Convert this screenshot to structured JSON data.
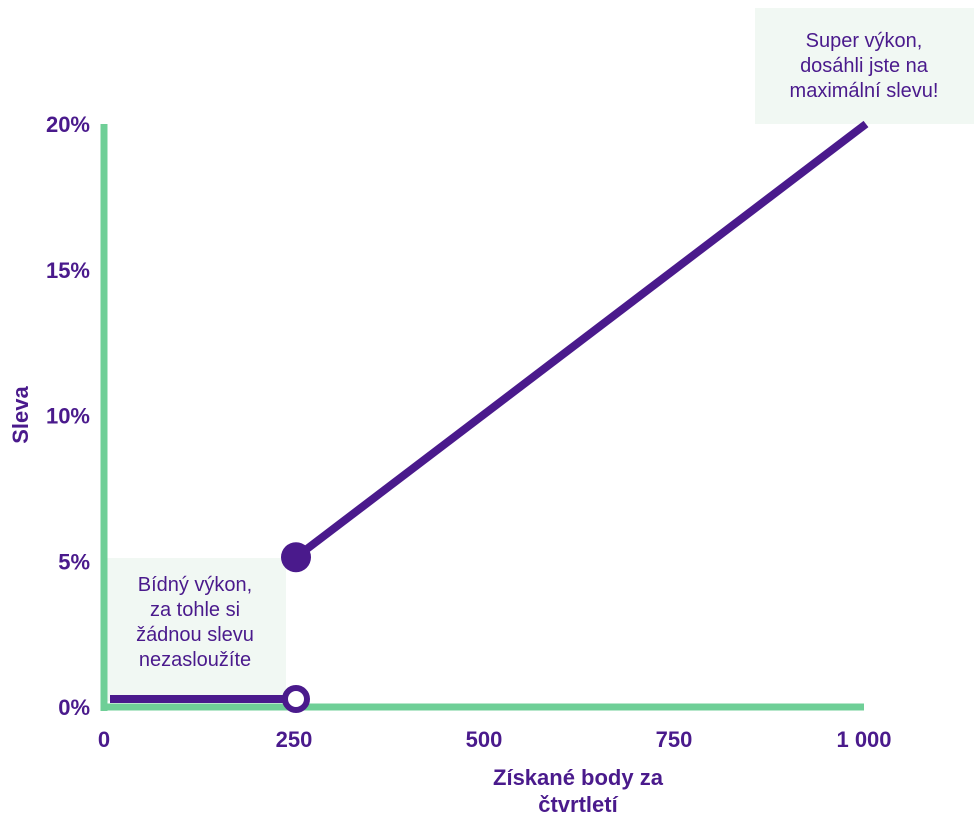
{
  "colors": {
    "axis": "#6fcf97",
    "line": "#4a1a8c",
    "text": "#4a1a8c",
    "note_bg": "#f1f8f3"
  },
  "chart_data": {
    "type": "line",
    "xlabel": [
      "Získané body za",
      "čtvrtletí"
    ],
    "ylabel": "Sleva",
    "xlim": [
      0,
      1000
    ],
    "ylim": [
      0,
      20
    ],
    "x_ticks": [
      {
        "value": 0,
        "label": "0"
      },
      {
        "value": 250,
        "label": "250"
      },
      {
        "value": 500,
        "label": "500"
      },
      {
        "value": 750,
        "label": "750"
      },
      {
        "value": 1000,
        "label": "1 000"
      }
    ],
    "y_ticks": [
      {
        "value": 0,
        "label": "0%"
      },
      {
        "value": 5,
        "label": "5%"
      },
      {
        "value": 10,
        "label": "10%"
      },
      {
        "value": 15,
        "label": "15%"
      },
      {
        "value": 20,
        "label": "20%"
      }
    ],
    "segments": [
      {
        "x": [
          0,
          250
        ],
        "y": [
          0,
          0
        ],
        "end_marker": "open"
      },
      {
        "x": [
          250,
          1000
        ],
        "y": [
          5,
          20
        ],
        "start_marker": "filled"
      }
    ],
    "annotations": [
      {
        "lines": [
          "Bídný výkon,",
          "za tohle si",
          "žádnou slevu",
          "nezasloužíte"
        ]
      },
      {
        "lines": [
          "Super výkon,",
          "dosáhli jste na",
          "maximální slevu!"
        ]
      }
    ]
  }
}
